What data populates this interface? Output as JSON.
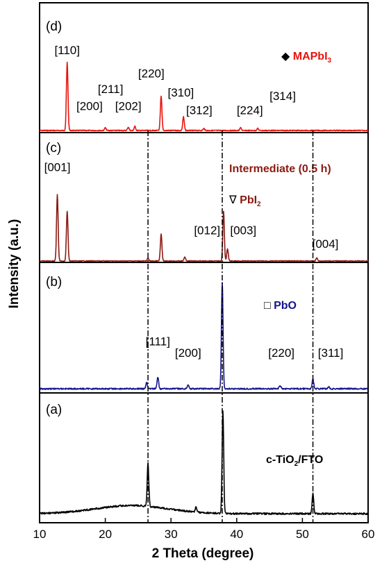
{
  "chart_data": {
    "type": "line",
    "xlabel": "2 Theta (degree)",
    "ylabel": "Intensity (a.u.)",
    "xlim": [
      10,
      60
    ],
    "x_ticks": [
      "10",
      "20",
      "30",
      "40",
      "50",
      "60"
    ],
    "reference_lines_x": [
      26.5,
      37.8,
      51.6
    ],
    "panels": [
      {
        "id": "d",
        "label": "(d)",
        "color": "#e8130b",
        "legend": [
          {
            "symbol": "◆",
            "text": "MAPbI",
            "sub": "3",
            "color": "#e8130b"
          }
        ],
        "peaks": [
          {
            "x": 14.2,
            "y": 1.0
          },
          {
            "x": 20.0,
            "y": 0.04
          },
          {
            "x": 23.5,
            "y": 0.05
          },
          {
            "x": 24.5,
            "y": 0.06
          },
          {
            "x": 28.5,
            "y": 0.5
          },
          {
            "x": 31.9,
            "y": 0.2
          },
          {
            "x": 35.0,
            "y": 0.03
          },
          {
            "x": 40.6,
            "y": 0.04
          },
          {
            "x": 43.2,
            "y": 0.03
          }
        ],
        "annotations": [
          {
            "text": "[110]",
            "x": 14.2,
            "y": 1.12
          },
          {
            "text": "[200]",
            "x": 17.6,
            "y": 0.3
          },
          {
            "text": "[211]",
            "x": 20.8,
            "y": 0.55
          },
          {
            "text": "[202]",
            "x": 23.5,
            "y": 0.3
          },
          {
            "text": "[220]",
            "x": 27.0,
            "y": 0.78
          },
          {
            "text": "[310]",
            "x": 31.5,
            "y": 0.5
          },
          {
            "text": "[312]",
            "x": 34.3,
            "y": 0.24
          },
          {
            "text": "[224]",
            "x": 42.0,
            "y": 0.24
          },
          {
            "text": "[314]",
            "x": 47.0,
            "y": 0.45
          }
        ]
      },
      {
        "id": "c",
        "label": "(c)",
        "color": "#8b1a12",
        "legend": [
          {
            "symbol": "",
            "text": "Intermediate (0.5 h)",
            "sub": "",
            "color": "#8b1a12"
          },
          {
            "symbol": "∇",
            "text": "PbI",
            "sub": "2",
            "color": "#8b1a12"
          }
        ],
        "peaks": [
          {
            "x": 12.7,
            "y": 1.0
          },
          {
            "x": 14.2,
            "y": 0.75
          },
          {
            "x": 26.5,
            "y": 0.04
          },
          {
            "x": 28.5,
            "y": 0.4
          },
          {
            "x": 32.1,
            "y": 0.06
          },
          {
            "x": 38.0,
            "y": 0.74
          },
          {
            "x": 38.6,
            "y": 0.18
          },
          {
            "x": 52.2,
            "y": 0.05
          }
        ],
        "annotations": [
          {
            "text": "[001]",
            "x": 12.7,
            "y": 1.35
          },
          {
            "text": "[012]",
            "x": 35.5,
            "y": 0.4
          },
          {
            "text": "[003]",
            "x": 41.0,
            "y": 0.4
          },
          {
            "text": "[004]",
            "x": 53.5,
            "y": 0.2
          }
        ]
      },
      {
        "id": "b",
        "label": "(b)",
        "color": "#14148c",
        "legend": [
          {
            "symbol": "□",
            "text": "PbO",
            "sub": "",
            "color": "#14148c"
          }
        ],
        "peaks": [
          {
            "x": 26.3,
            "y": 0.06
          },
          {
            "x": 28.0,
            "y": 0.11
          },
          {
            "x": 32.6,
            "y": 0.04
          },
          {
            "x": 37.8,
            "y": 1.0
          },
          {
            "x": 46.6,
            "y": 0.03
          },
          {
            "x": 51.6,
            "y": 0.09
          },
          {
            "x": 54.0,
            "y": 0.02
          }
        ],
        "annotations": [
          {
            "text": "[111]",
            "x": 28.0,
            "y": 0.41
          },
          {
            "text": "[200]",
            "x": 32.6,
            "y": 0.3
          },
          {
            "text": "[220]",
            "x": 46.8,
            "y": 0.3
          },
          {
            "text": "[311]",
            "x": 54.3,
            "y": 0.3
          }
        ]
      },
      {
        "id": "a",
        "label": "(a)",
        "color": "#000000",
        "legend": [
          {
            "symbol": "",
            "text": "c-TiO",
            "sub": "2",
            "color": "#000000",
            "suffix": "/FTO"
          }
        ],
        "peaks": [
          {
            "x": 26.5,
            "y": 0.42
          },
          {
            "x": 33.8,
            "y": 0.05
          },
          {
            "x": 37.9,
            "y": 1.0
          },
          {
            "x": 51.6,
            "y": 0.2
          }
        ],
        "annotations": []
      }
    ]
  }
}
